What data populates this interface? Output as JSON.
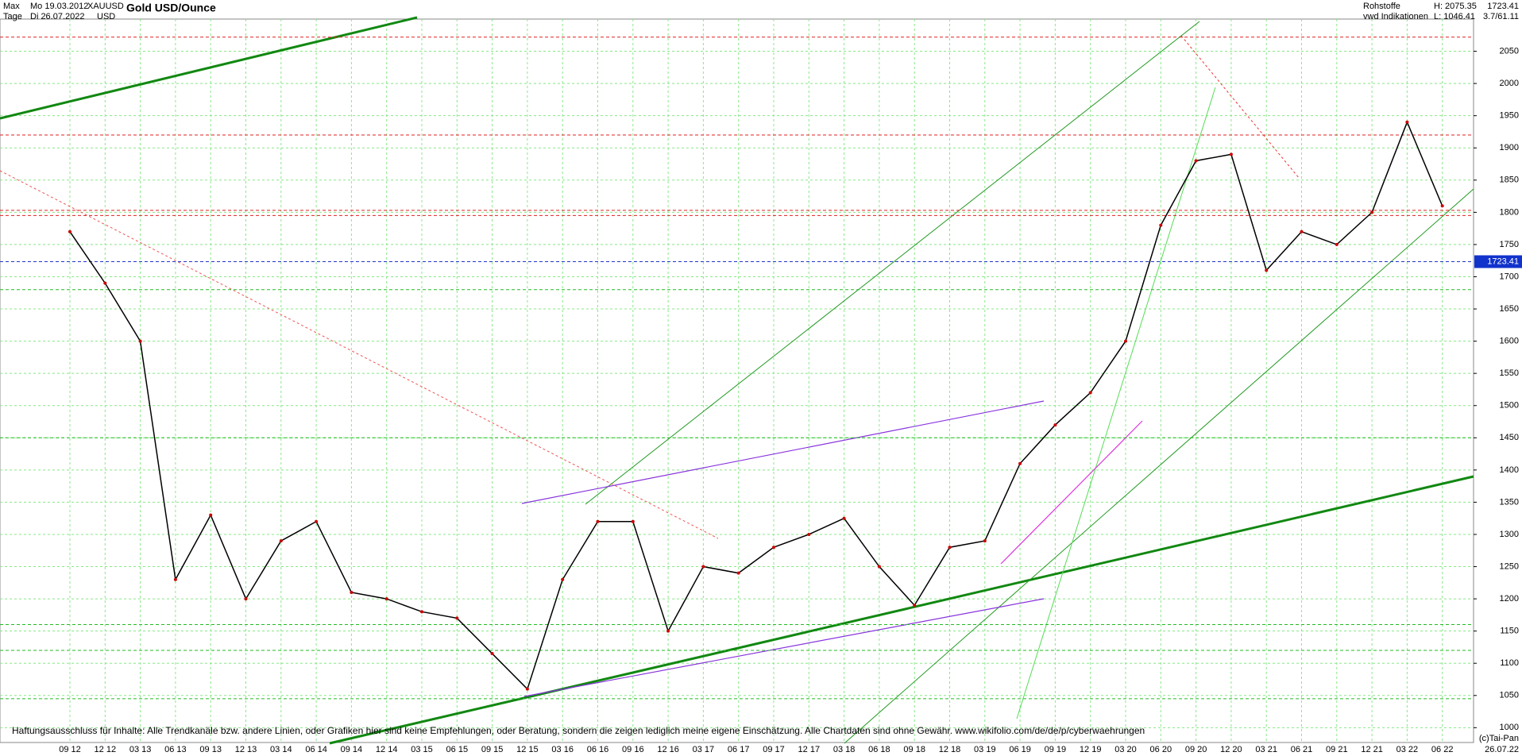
{
  "header": {
    "range": "Max",
    "start_date": "Mo 19.03.2012",
    "symbol": "XAUUSD",
    "period": "Tage",
    "end_date": "Di 26.07.2022",
    "currency": "USD",
    "category": "Rohstoffe",
    "high": "H: 2075.35",
    "source": "vwd Indikationen",
    "low": "L: 1046.41",
    "change": "3.7/61.11"
  },
  "footer": {
    "disclaimer": "Haftungsausschluss für Inhalte: Alle Trendkanäle bzw. andere Linien, oder Grafiken hier sind keine Empfehlungen, oder Beratung, sondern die zeigen lediglich meine eigene Einschätzung. Alle Chartdaten sind ohne Gewähr.  www.wikifolio.com/de/de/p/cyberwaehrungen",
    "date": "26.07.22",
    "copyright": "(c)Tai-Pan"
  },
  "chart_data": {
    "type": "line",
    "title": "Gold USD/Ounce",
    "categories": [
      "09 12",
      "12 12",
      "03 13",
      "06 13",
      "09 13",
      "12 13",
      "03 14",
      "06 14",
      "09 14",
      "12 14",
      "03 15",
      "06 15",
      "09 15",
      "12 15",
      "03 16",
      "06 16",
      "09 16",
      "12 16",
      "03 17",
      "06 17",
      "09 17",
      "12 17",
      "03 18",
      "06 18",
      "09 18",
      "12 18",
      "03 19",
      "06 19",
      "09 19",
      "12 19",
      "03 20",
      "06 20",
      "09 20",
      "12 20",
      "03 21",
      "06 21",
      "09 21",
      "12 21",
      "03 22",
      "06 22"
    ],
    "series": [
      {
        "name": "XAUUSD",
        "color": "#000000",
        "values": [
          1770,
          1690,
          1600,
          1230,
          1330,
          1200,
          1290,
          1320,
          1210,
          1200,
          1180,
          1170,
          1115,
          1060,
          1230,
          1320,
          1320,
          1150,
          1250,
          1240,
          1280,
          1300,
          1325,
          1250,
          1190,
          1280,
          1290,
          1410,
          1470,
          1520,
          1600,
          1780,
          1880,
          1890,
          1710,
          1770,
          1750,
          1800,
          1940,
          1810
        ]
      }
    ],
    "last_price": 1723.41,
    "reference_lines": [
      {
        "value": 2072,
        "color": "#e02020"
      },
      {
        "value": 1920,
        "color": "#e02020"
      },
      {
        "value": 1803,
        "color": "#e02020"
      },
      {
        "value": 1795,
        "color": "#e02020"
      },
      {
        "value": 1680,
        "color": "#22bb22"
      },
      {
        "value": 1450,
        "color": "#22bb22"
      },
      {
        "value": 1160,
        "color": "#22bb22"
      },
      {
        "value": 1120,
        "color": "#22bb22"
      },
      {
        "value": 1045,
        "color": "#22bb22"
      }
    ],
    "ylim": [
      977,
      2100
    ],
    "yticks": [
      1000,
      1050,
      1100,
      1150,
      1200,
      1250,
      1300,
      1350,
      1400,
      1450,
      1500,
      1550,
      1600,
      1650,
      1700,
      1750,
      1800,
      1850,
      1900,
      1950,
      2000,
      2050
    ],
    "grid": true
  }
}
